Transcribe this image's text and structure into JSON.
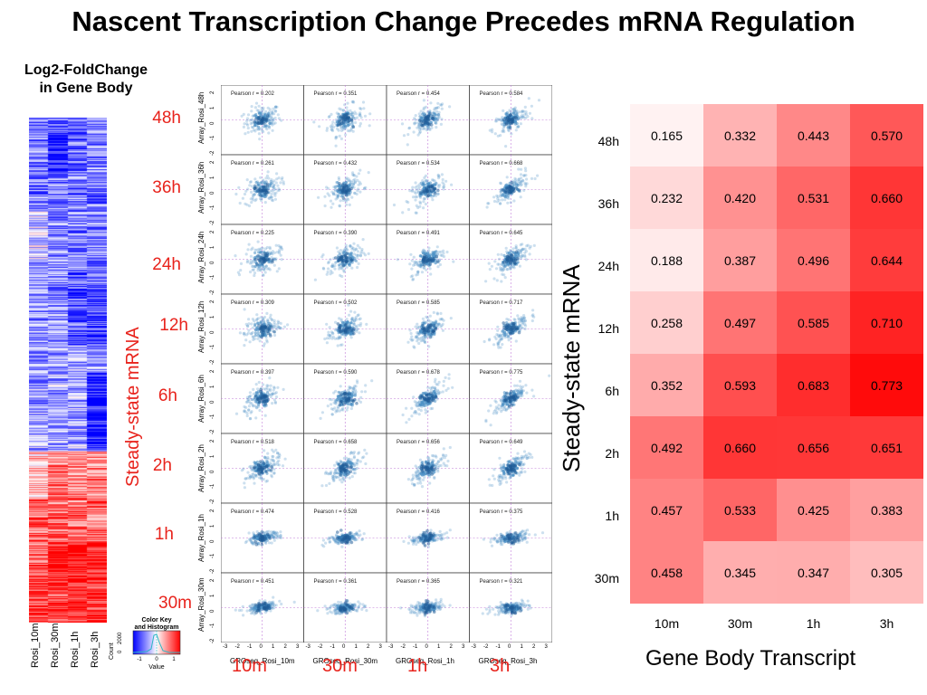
{
  "title": "Nascent Transcription Change Precedes mRNA Regulation",
  "heatmap_strip": {
    "title_line1": "Log2-FoldChange",
    "title_line2": "in Gene Body",
    "columns": [
      "Rosi_10m",
      "Rosi_30m",
      "Rosi_1h",
      "Rosi_3h"
    ]
  },
  "color_key": {
    "title_line1": "Color Key",
    "title_line2": "and Histogram",
    "ylabel": "Count",
    "xlabel": "Value",
    "y_ticks": [
      "0",
      "2000"
    ],
    "x_ticks": [
      "-1",
      "0",
      "1"
    ]
  },
  "middle_labels": {
    "rows": [
      "48h",
      "36h",
      "24h",
      "12h",
      "6h",
      "2h",
      "1h",
      "30m"
    ],
    "axis_title": "Steady-state mRNA",
    "bottom": [
      "10m",
      "30m",
      "1h",
      "3h"
    ]
  },
  "scatter_grid": {
    "row_axis_labels": [
      "Array_Rosi_48h",
      "Array_Rosi_36h",
      "Array_Rosi_24h",
      "Array_Rosi_12h",
      "Array_Rosi_6h",
      "Array_Rosi_2h",
      "Array_Rosi_1h",
      "Array_Rosi_30m"
    ],
    "col_axis_labels": [
      "GROseq_Rosi_10m",
      "GROseq_Rosi_30m",
      "GROseq_Rosi_1h",
      "GROseq_Rosi_3h"
    ],
    "pearson_prefix": "Pearson r = ",
    "pearson": [
      [
        "0.202",
        "0.351",
        "0.454",
        "0.584"
      ],
      [
        "0.261",
        "0.432",
        "0.534",
        "0.668"
      ],
      [
        "0.225",
        "0.390",
        "0.491",
        "0.645"
      ],
      [
        "0.309",
        "0.502",
        "0.585",
        "0.717"
      ],
      [
        "0.397",
        "0.590",
        "0.678",
        "0.775"
      ],
      [
        "0.518",
        "0.658",
        "0.656",
        "0.649"
      ],
      [
        "0.474",
        "0.528",
        "0.416",
        "0.375"
      ],
      [
        "0.451",
        "0.361",
        "0.365",
        "0.321"
      ]
    ],
    "y_ticks": [
      "2",
      "1",
      "0",
      "-1",
      "-2"
    ],
    "x_ticks": [
      "-3",
      "-2",
      "-1",
      "0",
      "1",
      "2",
      "3"
    ]
  },
  "chart_data": {
    "type": "heatmap",
    "row_labels": [
      "48h",
      "36h",
      "24h",
      "12h",
      "6h",
      "2h",
      "1h",
      "30m"
    ],
    "col_labels": [
      "10m",
      "30m",
      "1h",
      "3h"
    ],
    "values": [
      [
        0.165,
        0.332,
        0.443,
        0.57
      ],
      [
        0.232,
        0.42,
        0.531,
        0.66
      ],
      [
        0.188,
        0.387,
        0.496,
        0.644
      ],
      [
        0.258,
        0.497,
        0.585,
        0.71
      ],
      [
        0.352,
        0.593,
        0.683,
        0.773
      ],
      [
        0.492,
        0.66,
        0.656,
        0.651
      ],
      [
        0.457,
        0.533,
        0.425,
        0.383
      ],
      [
        0.458,
        0.345,
        0.347,
        0.305
      ]
    ],
    "ylabel": "Steady-state mRNA",
    "xlabel": "Gene Body Transcript",
    "colors": {
      "low": "#ffffff",
      "high": "#ff0000"
    }
  }
}
